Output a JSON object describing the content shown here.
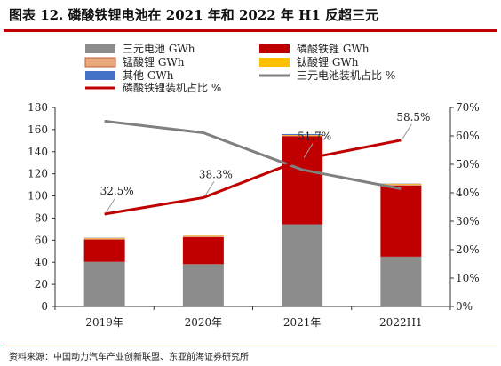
{
  "header": {
    "title": "图表 12. 磷酸铁锂电池在 2021 年和 2022 年 H1 反超三元"
  },
  "footer": {
    "source": "资料来源：中国动力汽车产业创新联盟、东亚前海证券研究所"
  },
  "chart_data": {
    "type": "bar",
    "stacked": true,
    "categories": [
      "2019年",
      "2020年",
      "2021年",
      "2022H1"
    ],
    "series": [
      {
        "name": "三元电池 GWh",
        "kind": "bar",
        "axis": "left",
        "color": "#8c8c8c",
        "values": [
          40.4,
          38.3,
          74.3,
          45.1
        ]
      },
      {
        "name": "磷酸铁锂 GWh",
        "kind": "bar",
        "axis": "left",
        "color": "#c00000",
        "values": [
          20.2,
          24.4,
          79.8,
          64.4
        ]
      },
      {
        "name": "锰酸锂 GWh",
        "kind": "bar",
        "axis": "left",
        "color": "#e8a87c",
        "values": [
          1.0,
          1.0,
          0.6,
          1.0
        ]
      },
      {
        "name": "钛酸锂 GWh",
        "kind": "bar",
        "axis": "left",
        "color": "#ffc000",
        "values": [
          0.5,
          0.5,
          0.4,
          0.6
        ]
      },
      {
        "name": "其他 GWh",
        "kind": "bar",
        "axis": "left",
        "color": "#4472c4",
        "values": [
          0.2,
          0.6,
          0.8,
          0.2
        ]
      },
      {
        "name": "三元电池装机占比 %",
        "kind": "line",
        "axis": "right",
        "color": "#808080",
        "values": [
          65.2,
          61.1,
          48.1,
          41.4
        ]
      },
      {
        "name": "磷酸铁锂装机占比 %",
        "kind": "line",
        "axis": "right",
        "color": "#c00000",
        "values": [
          32.5,
          38.3,
          51.7,
          58.5
        ]
      }
    ],
    "data_labels": [
      "32.5%",
      "38.3%",
      "51.7%",
      "58.5%"
    ],
    "left_axis": {
      "min": 0,
      "max": 180,
      "step": 20,
      "ticks": [
        "0",
        "20",
        "40",
        "60",
        "80",
        "100",
        "120",
        "140",
        "160",
        "180"
      ]
    },
    "right_axis": {
      "min": 0,
      "max": 70,
      "step": 10,
      "ticks": [
        "0%",
        "10%",
        "20%",
        "30%",
        "40%",
        "50%",
        "60%",
        "70%"
      ]
    },
    "grid": false,
    "legend_position": "top"
  }
}
